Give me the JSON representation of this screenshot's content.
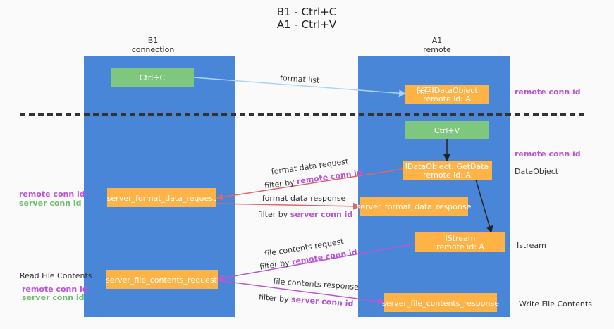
{
  "title": {
    "line1": "B1 - Ctrl+C",
    "line2": "A1 - Ctrl+V"
  },
  "columns": {
    "b1": {
      "name": "B1",
      "sub": "connection"
    },
    "a1": {
      "name": "A1",
      "sub": "remote"
    }
  },
  "nodes": {
    "ctrl_c": "Ctrl+C",
    "save_dataobject": {
      "line1": "保存IDataObject",
      "line2": "remote id: A"
    },
    "ctrl_v": "Ctrl+V",
    "getdata": {
      "line1": "IDataObject::GetData",
      "line2": "remote id: A"
    },
    "server_format_data_request": "server_format_data_request",
    "server_format_data_response": "server_format_data_response",
    "istream": {
      "line1": "IStream",
      "line2": "remote id: A"
    },
    "server_file_contents_request": "server_file_contents_request",
    "server_file_contents_response": "server_file_contents_response"
  },
  "edges": {
    "format_list": "format list",
    "format_data_request": "format data request",
    "format_data_response": "format data response",
    "file_contents_request": "file contents request",
    "file_contents_response": "file contents response",
    "filter_by": "filter by",
    "remote_conn_id": "remote conn id",
    "server_conn_id": "server conn id"
  },
  "side_labels": {
    "right_remote_conn_id_1": "remote conn id",
    "right_remote_conn_id_2": "remote conn id",
    "dataobject": "DataObject",
    "istream": "Istream",
    "write_file_contents": "Write File Contents",
    "left_remote_conn_id_1": "remote conn id",
    "left_server_conn_id_1": "server conn id",
    "read_file_contents": "Read File Contents",
    "left_remote_conn_id_2": "remote conn id",
    "left_server_conn_id_2": "server conn id"
  },
  "colors": {
    "column": "#4a86d8",
    "node_orange": "#ffb347",
    "node_green": "#7fc77f",
    "arrow_blue": "#a9d3f5",
    "arrow_red": "#e06666",
    "arrow_purple": "#b957d1",
    "purple_text": "#b957d1",
    "green_text": "#6cc06c"
  }
}
